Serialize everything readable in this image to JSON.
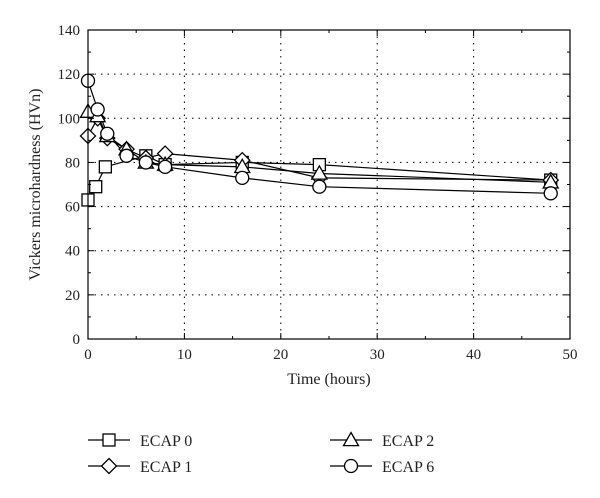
{
  "chart_data": {
    "type": "line",
    "title": "",
    "xlabel": "Time (hours)",
    "ylabel": "Vickers microhardness (HVn)",
    "xlim": [
      0,
      50
    ],
    "ylim": [
      0,
      140
    ],
    "x_ticks": [
      0,
      10,
      20,
      30,
      40,
      50
    ],
    "y_ticks": [
      0,
      20,
      40,
      60,
      80,
      100,
      120,
      140
    ],
    "x_tick_labels": [
      "0",
      "10",
      "20",
      "30",
      "40",
      "50"
    ],
    "y_tick_labels": [
      "0",
      "20",
      "40",
      "60",
      "80",
      "100",
      "120",
      "140"
    ],
    "grid": true,
    "legend_position": "bottom",
    "series": [
      {
        "name": "ECAP 0",
        "marker": "square",
        "x": [
          0,
          0.8,
          1.8,
          6,
          8,
          16,
          24,
          48
        ],
        "y": [
          63,
          69,
          78,
          83,
          79,
          80,
          79,
          72
        ]
      },
      {
        "name": "ECAP 1",
        "marker": "diamond",
        "x": [
          0,
          1,
          2,
          4,
          6,
          8,
          16,
          24,
          48
        ],
        "y": [
          92,
          100,
          91,
          86,
          82,
          84,
          81,
          73,
          72
        ]
      },
      {
        "name": "ECAP 2",
        "marker": "triangle",
        "x": [
          0,
          1,
          2,
          4,
          6,
          8,
          16,
          24,
          48
        ],
        "y": [
          103,
          101,
          92,
          86,
          80,
          79,
          78,
          75,
          71
        ]
      },
      {
        "name": "ECAP 6",
        "marker": "circle",
        "x": [
          0,
          1,
          2,
          4,
          6,
          8,
          16,
          24,
          48
        ],
        "y": [
          117,
          104,
          93,
          83,
          80,
          78,
          73,
          69,
          66
        ]
      }
    ]
  }
}
